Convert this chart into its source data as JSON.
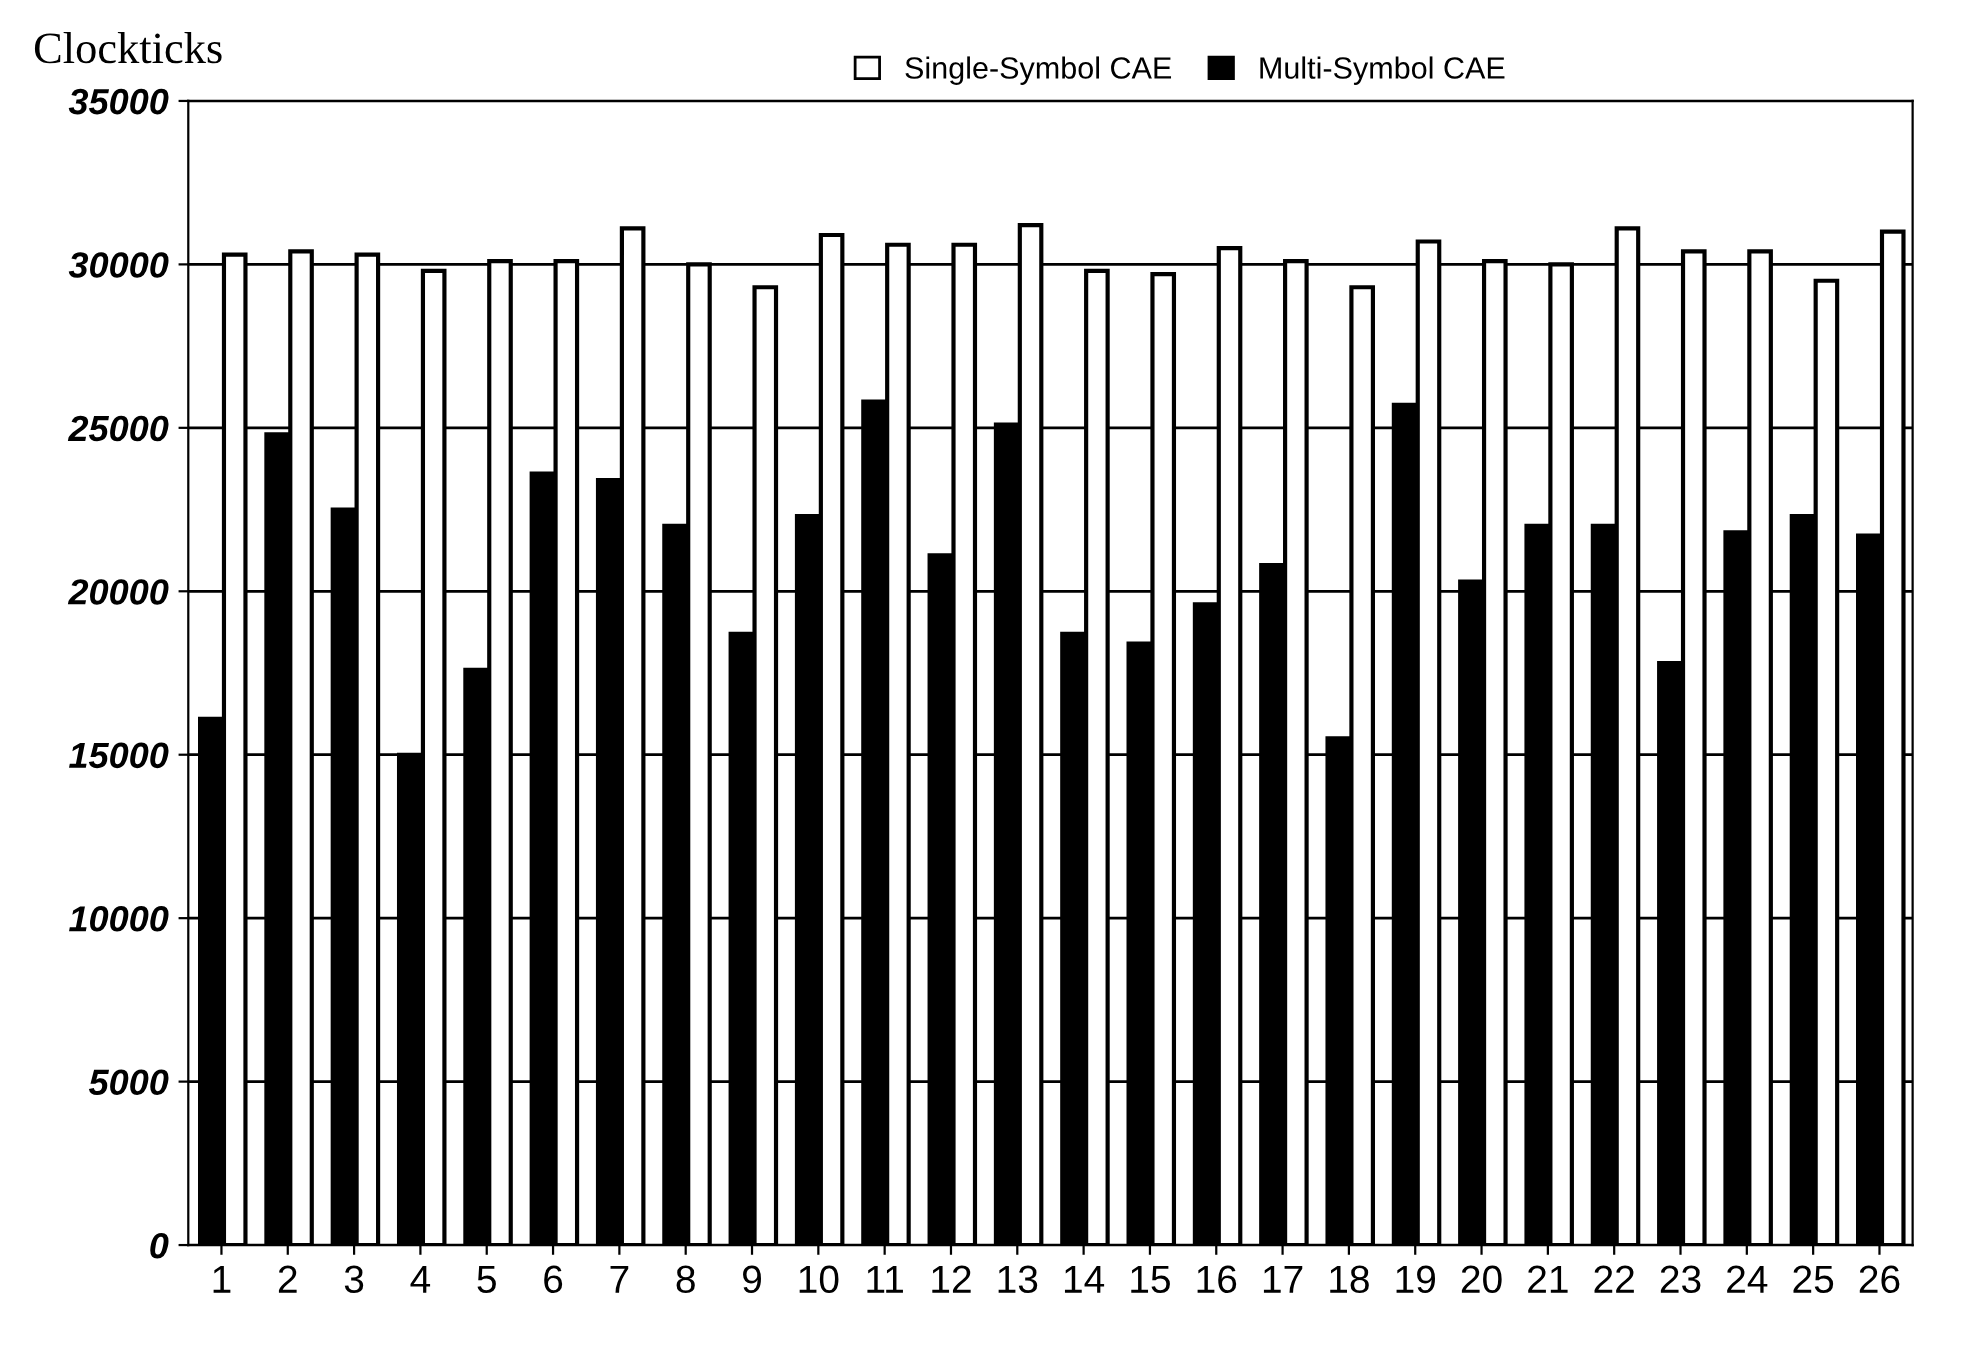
{
  "chart_data": {
    "type": "bar",
    "ylabel": "Clockticks",
    "categories": [
      "1",
      "2",
      "3",
      "4",
      "5",
      "6",
      "7",
      "8",
      "9",
      "10",
      "11",
      "12",
      "13",
      "14",
      "15",
      "16",
      "17",
      "18",
      "19",
      "20",
      "21",
      "22",
      "23",
      "24",
      "25",
      "26"
    ],
    "series": [
      {
        "name": "Single-Symbol CAE",
        "color": "#ffffff",
        "values": [
          30300,
          30400,
          30300,
          29800,
          30100,
          30100,
          31100,
          30000,
          29300,
          30900,
          30600,
          30600,
          31200,
          29800,
          29700,
          30500,
          30100,
          29300,
          30700,
          30100,
          30000,
          31100,
          30400,
          30400,
          29500,
          31000
        ]
      },
      {
        "name": "Multi-Symbol CAE",
        "color": "#000000",
        "values": [
          16100,
          24800,
          22500,
          15000,
          17600,
          23600,
          23400,
          22000,
          18700,
          22300,
          25800,
          21100,
          25100,
          18700,
          18400,
          19600,
          20800,
          15500,
          25700,
          20300,
          22000,
          22000,
          17800,
          21800,
          22300,
          21700
        ]
      }
    ],
    "ylim": [
      0,
      35000
    ],
    "yticks": [
      0,
      5000,
      10000,
      15000,
      20000,
      25000,
      30000,
      35000
    ],
    "grid": "y",
    "legend": "top right"
  }
}
